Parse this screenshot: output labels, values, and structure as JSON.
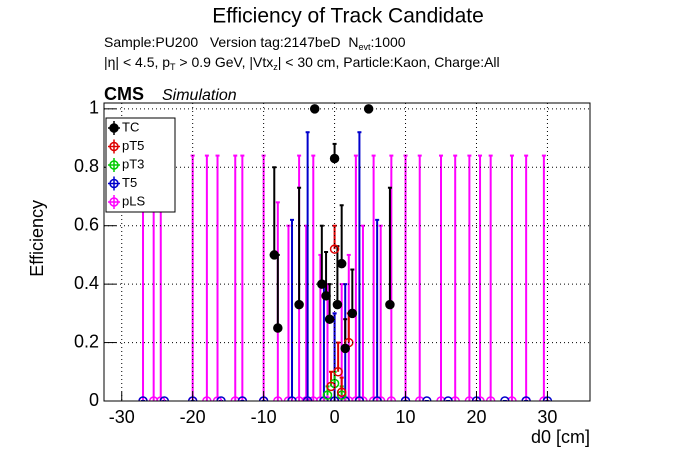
{
  "chart_data": {
    "type": "scatter",
    "title": "Efficiency of Track Candidate",
    "subtitle_lines": [
      [
        "Sample:PU200   Version tag:2147beD  N",
        "evt",
        ":1000"
      ],
      [
        "|η| < 4.5, p",
        "T",
        " > 0.9 GeV, |Vtx",
        "z",
        "| < 30 cm, Particle:Kaon, Charge:All"
      ]
    ],
    "cms_label": "CMS",
    "cms_sublabel": "Simulation",
    "x_label": "d0 [cm]",
    "y_label": "Efficiency",
    "xlim": [
      -32.5,
      36
    ],
    "ylim": [
      0,
      1.02
    ],
    "xticks": [
      -30,
      -20,
      -10,
      0,
      10,
      20,
      30
    ],
    "yticks": [
      0,
      0.2,
      0.4,
      0.6,
      0.8,
      1
    ],
    "grid": true,
    "legend": "upper left",
    "series": [
      {
        "name": "pLS",
        "color": "#ff00ff",
        "marker": "open",
        "x": [
          -27,
          -25.5,
          -24.5,
          -20,
          -18,
          -16.5,
          -14,
          -13,
          -10,
          -8,
          -6.5,
          -5,
          -4,
          -3,
          -2,
          -1,
          0,
          1,
          2,
          3,
          4,
          5.5,
          6.5,
          8,
          10,
          12,
          15,
          17,
          19,
          20.5,
          22,
          25,
          27,
          29.5
        ],
        "values": [
          0,
          0,
          0,
          0,
          0,
          0,
          0,
          0,
          0,
          0,
          0,
          0,
          0,
          0,
          0,
          0,
          0,
          0,
          0,
          0,
          0,
          0,
          0,
          0,
          0,
          0,
          0,
          0,
          0,
          0,
          0,
          0,
          0,
          0
        ],
        "errors": [
          0.84,
          0.84,
          0.84,
          0.84,
          0.84,
          0.84,
          0.84,
          0.84,
          0.84,
          0.68,
          0.6,
          0.84,
          0.6,
          0.84,
          0.5,
          0.4,
          0.3,
          0.4,
          0.5,
          0.84,
          0.6,
          0.84,
          0.6,
          0.84,
          0.84,
          0.84,
          0.84,
          0.84,
          0.84,
          0.84,
          0.84,
          0.84,
          0.84,
          0.84
        ]
      },
      {
        "name": "T5",
        "color": "#0000cc",
        "marker": "open",
        "x": [
          -27,
          -24,
          -20,
          -16,
          -13,
          -10,
          -6,
          -3.8,
          -1.5,
          0,
          1.5,
          3.5,
          6,
          10,
          13,
          16,
          20,
          24,
          27,
          30
        ],
        "values": [
          0,
          0,
          0,
          0,
          0,
          0,
          0,
          0,
          0,
          0,
          0,
          0,
          0,
          0,
          0,
          0,
          0,
          0,
          0,
          0
        ],
        "errors": [
          0,
          0,
          0,
          0,
          0,
          0,
          0.62,
          0.92,
          0.4,
          0.3,
          0.4,
          0.92,
          0.62,
          0,
          0,
          0,
          0,
          0,
          0,
          0
        ]
      },
      {
        "name": "pT3",
        "color": "#00cc00",
        "marker": "open",
        "x": [
          -1,
          0,
          1
        ],
        "values": [
          0.02,
          0.06,
          0.02
        ],
        "errors": [
          0.03,
          0.04,
          0.03
        ]
      },
      {
        "name": "pT5",
        "color": "#dd0000",
        "marker": "open",
        "x": [
          -0.5,
          0,
          0.5,
          1,
          2
        ],
        "values": [
          0.05,
          0.52,
          0.1,
          0.03,
          0.2
        ],
        "errors": [
          0.05,
          0.08,
          0.1,
          0.05,
          0.1
        ]
      },
      {
        "name": "TC",
        "color": "#000000",
        "marker": "filled",
        "x": [
          -8.5,
          -8,
          -5,
          -2.8,
          -1.8,
          -1.2,
          -0.7,
          0,
          0.4,
          1,
          1.5,
          2.5,
          4.8,
          7.8
        ],
        "values": [
          0.5,
          0.25,
          0.33,
          1,
          0.4,
          0.36,
          0.28,
          0.83,
          0.33,
          0.47,
          0.18,
          0.3,
          1,
          0.33
        ],
        "errors": [
          0.3,
          0.25,
          0.4,
          0,
          0.2,
          0.15,
          0.12,
          0.05,
          0.2,
          0.2,
          0.1,
          0.15,
          0,
          0.4
        ]
      }
    ],
    "legend_order": [
      4,
      3,
      2,
      1,
      0
    ]
  }
}
